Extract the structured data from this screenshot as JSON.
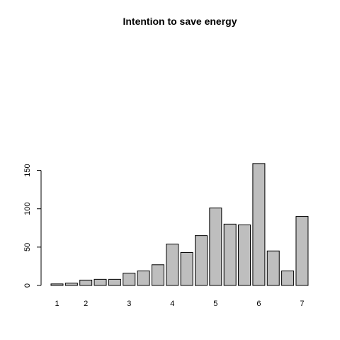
{
  "chart_data": {
    "type": "bar",
    "title": "Intention to save energy",
    "xlabel": "",
    "ylabel": "",
    "values": [
      2,
      3,
      7,
      8,
      8,
      16,
      19,
      27,
      54,
      43,
      65,
      101,
      80,
      79,
      159,
      45,
      19,
      90
    ],
    "x_tick_labels": [
      {
        "label": "1",
        "bar_index": 0
      },
      {
        "label": "2",
        "bar_index": 2
      },
      {
        "label": "3",
        "bar_index": 5
      },
      {
        "label": "4",
        "bar_index": 8
      },
      {
        "label": "5",
        "bar_index": 11
      },
      {
        "label": "6",
        "bar_index": 14
      },
      {
        "label": "7",
        "bar_index": 17
      }
    ],
    "y_ticks": [
      "0",
      "50",
      "100",
      "150"
    ],
    "ylim": [
      0,
      159
    ],
    "bar_color": "#bebebe",
    "grid": false,
    "legend": "none"
  }
}
